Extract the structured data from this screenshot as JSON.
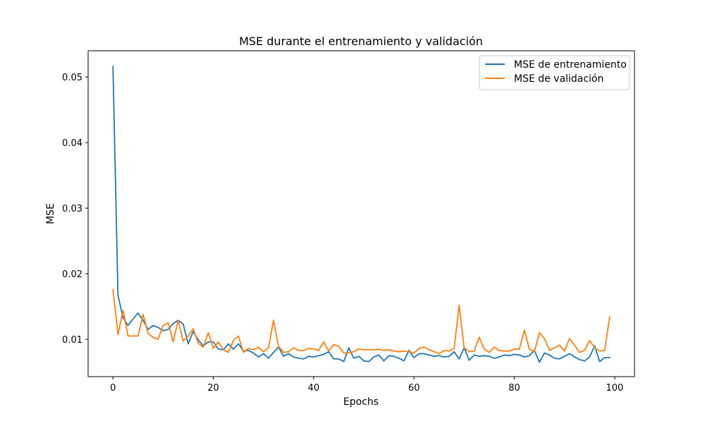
{
  "chart_data": {
    "type": "line",
    "title": "MSE durante el entrenamiento y validación",
    "xlabel": "Epochs",
    "ylabel": "MSE",
    "xlim": [
      -4.95,
      103.95
    ],
    "ylim": [
      0.0043,
      0.054
    ],
    "xticks": [
      0,
      20,
      40,
      60,
      80,
      100
    ],
    "xtick_labels": [
      "0",
      "20",
      "40",
      "60",
      "80",
      "100"
    ],
    "yticks": [
      0.01,
      0.02,
      0.03,
      0.04,
      0.05
    ],
    "ytick_labels": [
      "0.01",
      "0.02",
      "0.03",
      "0.04",
      "0.05"
    ],
    "grid": false,
    "legend_position": "top-right",
    "x": [
      0,
      1,
      2,
      3,
      4,
      5,
      6,
      7,
      8,
      9,
      10,
      11,
      12,
      13,
      14,
      15,
      16,
      17,
      18,
      19,
      20,
      21,
      22,
      23,
      24,
      25,
      26,
      27,
      28,
      29,
      30,
      31,
      32,
      33,
      34,
      35,
      36,
      37,
      38,
      39,
      40,
      41,
      42,
      43,
      44,
      45,
      46,
      47,
      48,
      49,
      50,
      51,
      52,
      53,
      54,
      55,
      56,
      57,
      58,
      59,
      60,
      61,
      62,
      63,
      64,
      65,
      66,
      67,
      68,
      69,
      70,
      71,
      72,
      73,
      74,
      75,
      76,
      77,
      78,
      79,
      80,
      81,
      82,
      83,
      84,
      85,
      86,
      87,
      88,
      89,
      90,
      91,
      92,
      93,
      94,
      95,
      96,
      97,
      98,
      99
    ],
    "series": [
      {
        "name": "MSE de entrenamiento",
        "color": "#1f77b4",
        "values": [
          0.0516,
          0.0167,
          0.0133,
          0.0121,
          0.0131,
          0.014,
          0.0129,
          0.0115,
          0.0121,
          0.0118,
          0.0113,
          0.0115,
          0.0124,
          0.0129,
          0.0123,
          0.0093,
          0.0112,
          0.0099,
          0.009,
          0.0096,
          0.0096,
          0.0085,
          0.0084,
          0.0093,
          0.0085,
          0.0093,
          0.0082,
          0.0083,
          0.0079,
          0.0073,
          0.0078,
          0.0071,
          0.008,
          0.0088,
          0.0074,
          0.0078,
          0.0073,
          0.0071,
          0.007,
          0.0074,
          0.0073,
          0.0075,
          0.0077,
          0.0081,
          0.007,
          0.007,
          0.0066,
          0.0087,
          0.0071,
          0.0074,
          0.0067,
          0.0066,
          0.0073,
          0.0076,
          0.0067,
          0.0075,
          0.0074,
          0.0071,
          0.0067,
          0.0083,
          0.0072,
          0.0078,
          0.0078,
          0.0076,
          0.0074,
          0.0075,
          0.0073,
          0.0074,
          0.0081,
          0.007,
          0.0087,
          0.0068,
          0.0076,
          0.0074,
          0.0075,
          0.0074,
          0.0071,
          0.0073,
          0.0076,
          0.0075,
          0.0077,
          0.0076,
          0.0073,
          0.0075,
          0.0083,
          0.0065,
          0.0079,
          0.0076,
          0.0071,
          0.007,
          0.0074,
          0.0078,
          0.0073,
          0.0069,
          0.0067,
          0.0073,
          0.009,
          0.0066,
          0.0072,
          0.0072
        ]
      },
      {
        "name": "MSE de validación",
        "color": "#ff7f0e",
        "values": [
          0.0176,
          0.0107,
          0.0144,
          0.0105,
          0.0105,
          0.0105,
          0.0138,
          0.0109,
          0.0103,
          0.01,
          0.0121,
          0.0125,
          0.0096,
          0.0129,
          0.0097,
          0.0105,
          0.0116,
          0.0094,
          0.0088,
          0.011,
          0.0086,
          0.0096,
          0.0084,
          0.008,
          0.0098,
          0.0105,
          0.008,
          0.0086,
          0.0084,
          0.0088,
          0.0081,
          0.0087,
          0.0129,
          0.0089,
          0.008,
          0.0081,
          0.0087,
          0.0083,
          0.0083,
          0.0086,
          0.0085,
          0.0083,
          0.0096,
          0.0082,
          0.0092,
          0.0089,
          0.0079,
          0.0079,
          0.0081,
          0.0085,
          0.0084,
          0.0084,
          0.0084,
          0.0085,
          0.0083,
          0.0084,
          0.0082,
          0.0081,
          0.0082,
          0.0081,
          0.0079,
          0.0086,
          0.0088,
          0.0084,
          0.0081,
          0.0078,
          0.0083,
          0.0082,
          0.0086,
          0.0152,
          0.0087,
          0.0081,
          0.0082,
          0.0103,
          0.0085,
          0.008,
          0.0088,
          0.0083,
          0.0082,
          0.0082,
          0.0085,
          0.0085,
          0.0114,
          0.0085,
          0.0081,
          0.011,
          0.0101,
          0.0083,
          0.0087,
          0.0091,
          0.0082,
          0.0101,
          0.0091,
          0.008,
          0.0083,
          0.0098,
          0.0087,
          0.0082,
          0.0083,
          0.0134
        ]
      }
    ]
  }
}
